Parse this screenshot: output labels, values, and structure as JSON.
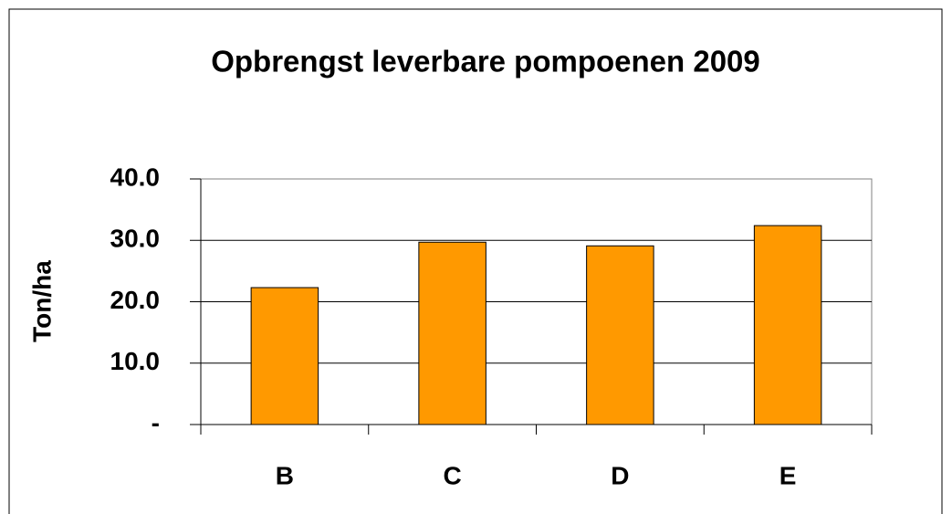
{
  "chart_data": {
    "type": "bar",
    "title": "Opbrengst leverbare pompoenen 2009",
    "y_label": "Ton/ha",
    "categories": [
      "B",
      "C",
      "D",
      "E"
    ],
    "values": [
      22.3,
      29.7,
      29.1,
      32.4
    ],
    "color": "#ff9900",
    "ylim": [
      0,
      40
    ],
    "yticks": [
      {
        "value": 0,
        "label": "-"
      },
      {
        "value": 10,
        "label": "10.0"
      },
      {
        "value": 20,
        "label": "20.0"
      },
      {
        "value": 30,
        "label": "30.0"
      },
      {
        "value": 40,
        "label": "40.0"
      }
    ],
    "grid": true
  }
}
